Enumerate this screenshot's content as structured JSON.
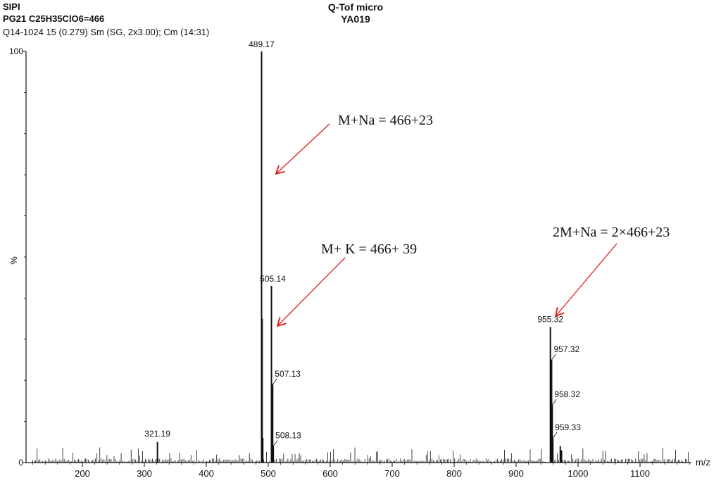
{
  "header": {
    "lab": "SIPI",
    "sample": "PG21  C25H35ClO6=466",
    "scan": "Q14-1024  15 (0.279) Sm (SG, 2x3.00); Cm (14:31)",
    "instrument": "Q-Tof micro",
    "sample_code": "YA019"
  },
  "chart_data": {
    "type": "bar",
    "xlabel": "m/z",
    "ylabel": "%",
    "xlim": [
      110,
      1185
    ],
    "ylim": [
      0,
      100
    ],
    "xticks": [
      200,
      300,
      400,
      500,
      600,
      700,
      800,
      900,
      1000,
      1100
    ],
    "yticks": [
      0,
      100
    ],
    "peaks": [
      {
        "mz": 489.17,
        "intensity": 100,
        "label": "489.17"
      },
      {
        "mz": 490.17,
        "intensity": 35,
        "label": ""
      },
      {
        "mz": 491.17,
        "intensity": 6,
        "label": ""
      },
      {
        "mz": 505.14,
        "intensity": 43,
        "label": "505.14"
      },
      {
        "mz": 507.13,
        "intensity": 19,
        "label": "507.13"
      },
      {
        "mz": 508.13,
        "intensity": 4,
        "label": "508.13"
      },
      {
        "mz": 321.19,
        "intensity": 5,
        "label": "321.19"
      },
      {
        "mz": 955.32,
        "intensity": 33,
        "label": "955.32"
      },
      {
        "mz": 957.32,
        "intensity": 25,
        "label": "957.32"
      },
      {
        "mz": 958.32,
        "intensity": 14,
        "label": "958.32"
      },
      {
        "mz": 959.33,
        "intensity": 6,
        "label": "959.33"
      },
      {
        "mz": 971.3,
        "intensity": 4,
        "label": ""
      },
      {
        "mz": 973.3,
        "intensity": 3,
        "label": ""
      }
    ],
    "annotations": [
      {
        "text": "M+Na = 466+23",
        "points_to": 489.17
      },
      {
        "text": "M+ K = 466+ 39",
        "points_to": 505.14
      },
      {
        "text": "2M+Na = 2×466+23",
        "points_to": 955.32
      }
    ],
    "annotation_arrow_color": "#e02020",
    "line_color": "#111111"
  }
}
